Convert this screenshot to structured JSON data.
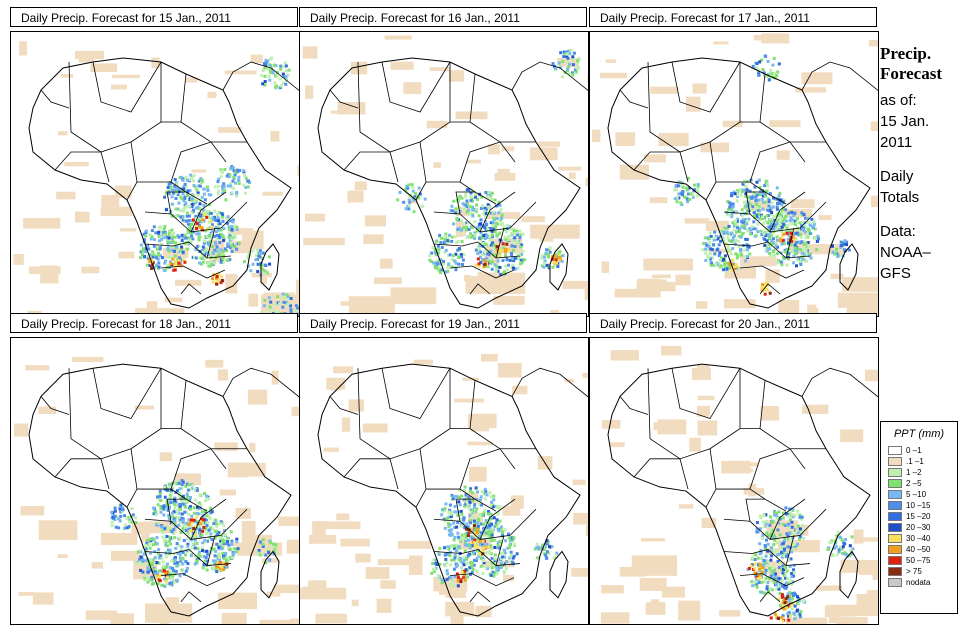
{
  "panels": [
    {
      "title": "Daily Precip. Forecast for  15 Jan., 2011"
    },
    {
      "title": "Daily Precip. Forecast for  16 Jan., 2011"
    },
    {
      "title": "Daily Precip. Forecast for  17 Jan., 2011"
    },
    {
      "title": "Daily Precip. Forecast for  18 Jan., 2011"
    },
    {
      "title": "Daily Precip. Forecast for  19 Jan., 2011"
    },
    {
      "title": "Daily Precip. Forecast for  20 Jan., 2011"
    }
  ],
  "info": {
    "heading1": "Precip.",
    "heading2": "Forecast",
    "asof": "as of:",
    "date1": "15 Jan.",
    "date2": "2011",
    "daily1": "Daily",
    "daily2": "Totals",
    "data1": "Data:",
    "data2": "NOAA–",
    "data3": "GFS"
  },
  "legend": {
    "title": "PPT (mm)",
    "items": [
      {
        "label": "0 –1",
        "color": "#ffffff"
      },
      {
        "label": ".1 –1",
        "color": "#f2dcc0"
      },
      {
        "label": "1 –2",
        "color": "#bff0b0"
      },
      {
        "label": "2 –5",
        "color": "#80e070"
      },
      {
        "label": "5 –10",
        "color": "#78b8f0"
      },
      {
        "label": "10 –15",
        "color": "#4f8ee8"
      },
      {
        "label": "15 –20",
        "color": "#2f6fe0"
      },
      {
        "label": "20 –30",
        "color": "#1e4fc8"
      },
      {
        "label": "30 –40",
        "color": "#f8e060"
      },
      {
        "label": "40 –50",
        "color": "#f0a020"
      },
      {
        "label": "50 –75",
        "color": "#e02010"
      },
      {
        "label": "> 75",
        "color": "#8b2a10"
      },
      {
        "label": "nodata",
        "color": "#c8c8c8"
      }
    ]
  }
}
